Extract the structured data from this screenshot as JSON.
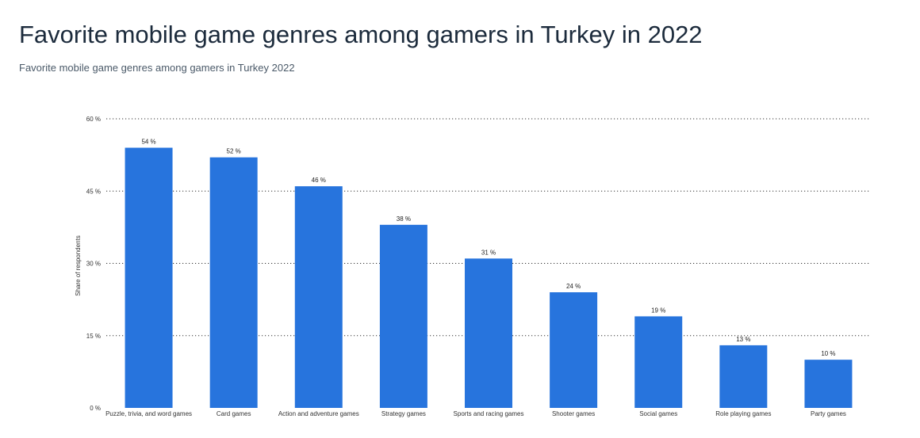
{
  "title": "Favorite mobile game genres among gamers in Turkey in 2022",
  "subtitle": "Favorite mobile game genres among gamers in Turkey 2022",
  "colors": {
    "bar": "#2774dd",
    "grid": "#333333"
  },
  "chart_data": {
    "type": "bar",
    "title": "Favorite mobile game genres among gamers in Turkey in 2022",
    "ylabel": "Share of respondents",
    "xlabel": "",
    "ylim": [
      0,
      60
    ],
    "yticks": [
      0,
      15,
      30,
      45,
      60
    ],
    "ytick_labels": [
      "0 %",
      "15 %",
      "30 %",
      "45 %",
      "60 %"
    ],
    "grid": true,
    "categories": [
      "Puzzle, trivia, and word games",
      "Card games",
      "Action and adventure games",
      "Strategy games",
      "Sports and racing games",
      "Shooter games",
      "Social games",
      "Role playing games",
      "Party games"
    ],
    "values": [
      54,
      52,
      46,
      38,
      31,
      24,
      19,
      13,
      10
    ],
    "value_labels": [
      "54 %",
      "52 %",
      "46 %",
      "38 %",
      "31 %",
      "24 %",
      "19 %",
      "13 %",
      "10 %"
    ]
  }
}
